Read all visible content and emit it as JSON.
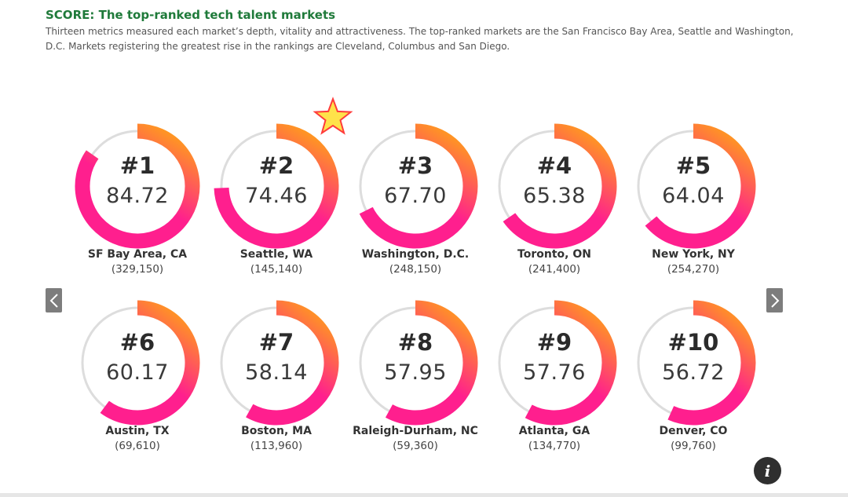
{
  "header": {
    "title": "SCORE: The top-ranked tech talent markets",
    "subtitle": "Thirteen metrics measured each market’s depth, vitality and attractiveness. The top-ranked markets are the San Francisco Bay Area, Seattle and Washington, D.C. Markets registering the greatest rise in the rankings are Cleveland, Columbus and San Diego."
  },
  "colors": {
    "arc_start": "#ff9a1f",
    "arc_end": "#ff1f8e",
    "track": "#dddddd",
    "title": "#1f7a3a",
    "star_fill": "#ffe24a",
    "star_stroke": "#ff3b3b"
  },
  "icons": {
    "prev": "chevron-left-icon",
    "next": "chevron-right-icon",
    "info": "info-icon",
    "highlight": "star-icon"
  },
  "chart_data": {
    "type": "gauge",
    "max": 100,
    "items": [
      {
        "rank": "#1",
        "score": "84.72",
        "value": 84.72,
        "city": "SF Bay Area, CA",
        "pop": "(329,150)"
      },
      {
        "rank": "#2",
        "score": "74.46",
        "value": 74.46,
        "city": "Seattle, WA",
        "pop": "(145,140)",
        "starred": true
      },
      {
        "rank": "#3",
        "score": "67.70",
        "value": 67.7,
        "city": "Washington, D.C.",
        "pop": "(248,150)"
      },
      {
        "rank": "#4",
        "score": "65.38",
        "value": 65.38,
        "city": "Toronto, ON",
        "pop": "(241,400)"
      },
      {
        "rank": "#5",
        "score": "64.04",
        "value": 64.04,
        "city": "New York, NY",
        "pop": "(254,270)"
      },
      {
        "rank": "#6",
        "score": "60.17",
        "value": 60.17,
        "city": "Austin, TX",
        "pop": "(69,610)"
      },
      {
        "rank": "#7",
        "score": "58.14",
        "value": 58.14,
        "city": "Boston, MA",
        "pop": "(113,960)"
      },
      {
        "rank": "#8",
        "score": "57.95",
        "value": 57.95,
        "city": "Raleigh-Durham, NC",
        "pop": "(59,360)"
      },
      {
        "rank": "#9",
        "score": "57.76",
        "value": 57.76,
        "city": "Atlanta, GA",
        "pop": "(134,770)"
      },
      {
        "rank": "#10",
        "score": "56.72",
        "value": 56.72,
        "city": "Denver, CO",
        "pop": "(99,760)"
      }
    ]
  }
}
